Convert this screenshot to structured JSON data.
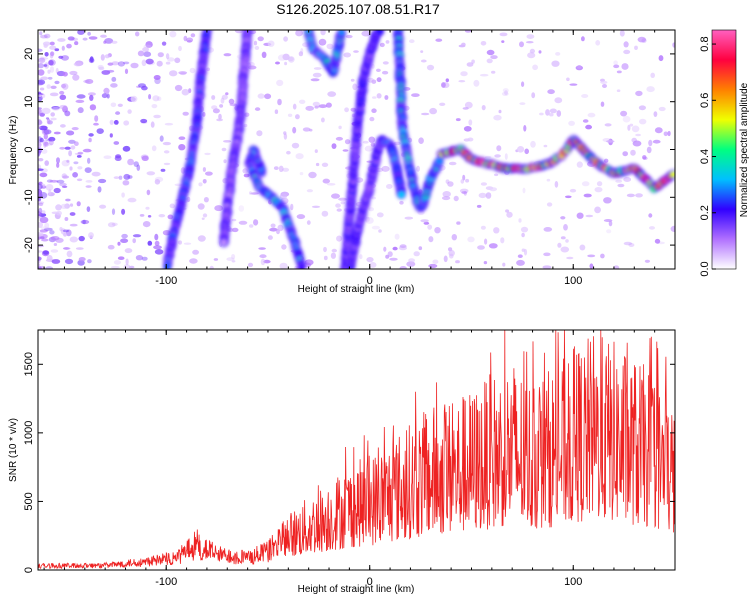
{
  "title": "S126.2025.107.08.51.R17",
  "chart_data": [
    {
      "type": "heatmap",
      "xlabel": "Height of straight line (km)",
      "ylabel": "Frequency (Hz)",
      "xlim": [
        -163,
        150
      ],
      "ylim": [
        -25,
        25
      ],
      "xticks": [
        -100,
        0,
        100
      ],
      "xtick_labels": [
        "-100",
        "0",
        "100"
      ],
      "yticks": [
        -20,
        -10,
        0,
        10,
        20
      ],
      "ytick_labels": [
        "-20",
        "-10",
        "0",
        "10",
        "20"
      ],
      "colorbar": {
        "label": "Normalized spectral amplitude",
        "range": [
          0,
          0.85
        ],
        "ticks": [
          0.0,
          0.2,
          0.4,
          0.6,
          0.8
        ],
        "tick_labels": [
          "0.0",
          "0.2",
          "0.4",
          "0.6",
          "0.8"
        ],
        "colors": [
          "#ffffff",
          "#b070ff",
          "#3000ff",
          "#00c0ff",
          "#00ff80",
          "#f0ff00",
          "#ff8000",
          "#ff0040",
          "#ff60c0"
        ]
      },
      "ridges": [
        {
          "x": [
            -80,
            -83,
            -85,
            -88,
            -92,
            -96,
            -100
          ],
          "y": [
            25,
            15,
            5,
            -3,
            -10,
            -17,
            -25
          ],
          "amp": 0.25
        },
        {
          "x": [
            -60,
            -62,
            -64,
            -68,
            -72
          ],
          "y": [
            25,
            15,
            5,
            -5,
            -20
          ],
          "amp": 0.15
        },
        {
          "x": [
            -53,
            -57,
            -59,
            -54,
            -48,
            -43,
            -38,
            -33
          ],
          "y": [
            -5,
            0,
            -3,
            -8,
            -10,
            -12,
            -18,
            -25
          ],
          "amp": 0.35
        },
        {
          "x": [
            -30,
            -28,
            -22,
            -18,
            -16,
            -14
          ],
          "y": [
            25,
            21,
            19,
            16,
            20,
            25
          ],
          "amp": 0.35
        },
        {
          "x": [
            -12,
            -9,
            -6,
            -3,
            0,
            3,
            6
          ],
          "y": [
            -25,
            -10,
            5,
            15,
            20,
            24,
            25
          ],
          "amp": 0.2
        },
        {
          "x": [
            -10,
            -5,
            0,
            4,
            6
          ],
          "y": [
            -25,
            -15,
            -8,
            0,
            2
          ],
          "amp": 0.2
        },
        {
          "x": [
            6,
            10,
            13,
            16
          ],
          "y": [
            2,
            1,
            -3,
            -10
          ],
          "amp": 0.3
        },
        {
          "x": [
            14,
            16,
            20,
            24,
            26,
            30,
            35
          ],
          "y": [
            25,
            5,
            -5,
            -12,
            -12,
            -6,
            -2
          ],
          "amp": 0.35
        },
        {
          "x": [
            35,
            45,
            50,
            58,
            68,
            78,
            88,
            95,
            100,
            105,
            112,
            120,
            130,
            140,
            150
          ],
          "y": [
            -1,
            0,
            -2,
            -3,
            -4,
            -4,
            -3,
            -1,
            2,
            0,
            -3,
            -5,
            -4,
            -8,
            -5
          ],
          "amp": 0.7
        }
      ]
    },
    {
      "type": "line",
      "xlabel": "Height of straight line (km)",
      "ylabel": "SNR (10 * v/v)",
      "xlim": [
        -163,
        150
      ],
      "ylim": [
        0,
        1750
      ],
      "xticks": [
        -100,
        0,
        100
      ],
      "xtick_labels": [
        "-100",
        "0",
        "100"
      ],
      "yticks": [
        0,
        500,
        1000,
        1500
      ],
      "ytick_labels": [
        "0",
        "500",
        "1000",
        "1500"
      ],
      "color": "#ee2222",
      "envelope": {
        "x": [
          -163,
          -130,
          -110,
          -95,
          -85,
          -75,
          -60,
          -50,
          -40,
          -30,
          -20,
          -10,
          0,
          10,
          20,
          30,
          40,
          50,
          60,
          70,
          80,
          90,
          100,
          110,
          120,
          130,
          140,
          150
        ],
        "y": [
          40,
          45,
          80,
          120,
          250,
          150,
          120,
          180,
          350,
          450,
          550,
          650,
          700,
          800,
          900,
          1000,
          1050,
          1100,
          1200,
          1300,
          1150,
          1250,
          1350,
          1450,
          1400,
          1300,
          1200,
          1000
        ]
      }
    }
  ]
}
